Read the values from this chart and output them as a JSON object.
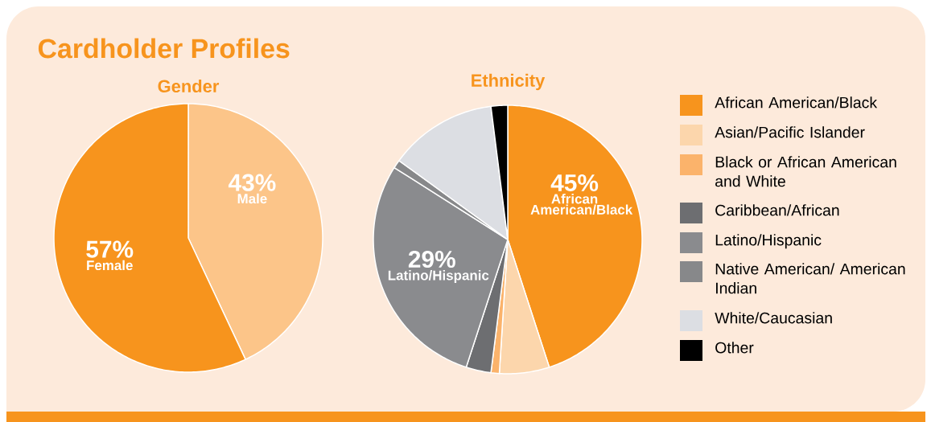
{
  "chart_data": [
    {
      "type": "pie",
      "title": "Gender",
      "annotations": [
        "Cardholder Profiles"
      ],
      "categories": [
        "Male",
        "Female"
      ],
      "values": [
        43,
        57
      ],
      "colors": [
        "#fcc589",
        "#f7941d"
      ],
      "value_labels": [
        "43%",
        "57%"
      ],
      "legend": false
    },
    {
      "type": "pie",
      "title": "Ethnicity",
      "categories": [
        "African American/Black",
        "Asian/Pacific Islander",
        "Black or African American and White",
        "Caribbean/African",
        "Latino/Hispanic",
        "Native American/ American Indian",
        "White/Caucasian",
        "Other"
      ],
      "values": [
        45,
        6,
        1,
        3,
        29,
        1,
        13,
        2
      ],
      "colors": [
        "#f7941d",
        "#fcd6ac",
        "#fbb36b",
        "#6d6e71",
        "#8a8b8e",
        "#87888a",
        "#dcdee3",
        "#000000"
      ],
      "value_labels": [
        "45%",
        null,
        null,
        null,
        "29%",
        null,
        null,
        null
      ],
      "legend": "right"
    }
  ]
}
